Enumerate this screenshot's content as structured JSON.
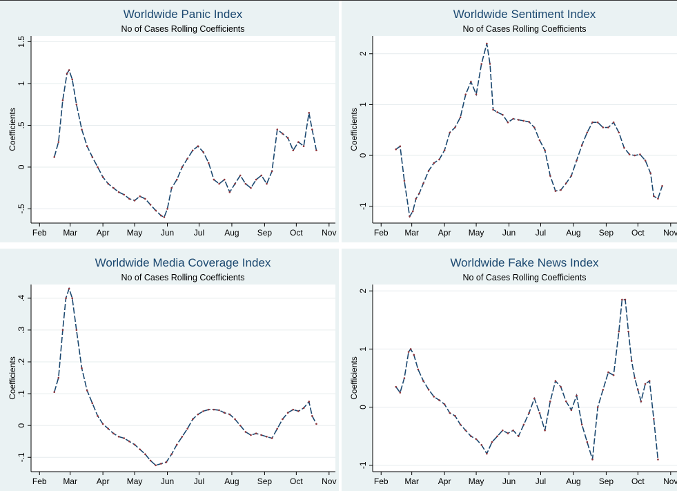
{
  "chart_data": [
    {
      "type": "line",
      "title": "Worldwide Panic Index",
      "subtitle": "No of Cases Rolling Coefficients",
      "y_label": "Coefficients",
      "x": [
        14,
        18,
        22,
        26,
        28,
        31,
        35,
        40,
        45,
        50,
        55,
        60,
        65,
        70,
        75,
        80,
        85,
        90,
        95,
        100,
        105,
        110,
        115,
        118,
        121,
        125,
        130,
        135,
        140,
        145,
        150,
        155,
        160,
        165,
        170,
        175,
        180,
        185,
        190,
        195,
        200,
        205,
        210,
        215,
        220,
        225,
        230,
        235,
        240,
        245,
        250,
        255,
        258,
        262
      ],
      "values": [
        0.12,
        0.3,
        0.8,
        1.12,
        1.16,
        1.05,
        0.75,
        0.45,
        0.25,
        0.12,
        0.0,
        -0.12,
        -0.2,
        -0.25,
        -0.3,
        -0.33,
        -0.38,
        -0.4,
        -0.35,
        -0.38,
        -0.45,
        -0.52,
        -0.58,
        -0.6,
        -0.5,
        -0.25,
        -0.15,
        0.0,
        0.1,
        0.2,
        0.25,
        0.18,
        0.05,
        -0.15,
        -0.2,
        -0.15,
        -0.3,
        -0.2,
        -0.1,
        -0.2,
        -0.25,
        -0.15,
        -0.1,
        -0.2,
        -0.05,
        0.45,
        0.4,
        0.35,
        0.2,
        0.3,
        0.25,
        0.65,
        0.45,
        0.2
      ],
      "color": "#1a476f",
      "marker_color": "#90353b",
      "xlim": [
        -8,
        280
      ],
      "xticks": [
        {
          "value": 0,
          "label": "Feb"
        },
        {
          "value": 29,
          "label": "Mar"
        },
        {
          "value": 60,
          "label": "Apr"
        },
        {
          "value": 90,
          "label": "May"
        },
        {
          "value": 121,
          "label": "Jun"
        },
        {
          "value": 151,
          "label": "Jul"
        },
        {
          "value": 182,
          "label": "Aug"
        },
        {
          "value": 213,
          "label": "Sep"
        },
        {
          "value": 243,
          "label": "Oct"
        },
        {
          "value": 274,
          "label": "Nov"
        }
      ],
      "ylim": [
        -0.67,
        1.57
      ],
      "yticks": [
        {
          "value": -0.5,
          "label": "-.5"
        },
        0,
        {
          "value": 0.5,
          "label": ".5"
        },
        1,
        1.5
      ],
      "grid": true
    },
    {
      "type": "line",
      "title": "Worldwide Sentiment Index",
      "subtitle": "No of Cases Rolling Coefficients",
      "y_label": "Coefficients",
      "x": [
        14,
        18,
        22,
        27,
        30,
        33,
        36,
        40,
        45,
        50,
        55,
        60,
        65,
        70,
        75,
        80,
        85,
        90,
        95,
        100,
        103,
        106,
        110,
        115,
        120,
        125,
        130,
        135,
        140,
        145,
        150,
        155,
        160,
        165,
        170,
        175,
        180,
        185,
        190,
        195,
        200,
        205,
        210,
        215,
        220,
        225,
        230,
        235,
        240,
        245,
        250,
        255,
        258,
        262,
        266
      ],
      "values": [
        0.12,
        0.18,
        -0.5,
        -1.2,
        -1.1,
        -0.85,
        -0.75,
        -0.55,
        -0.3,
        -0.15,
        -0.08,
        0.1,
        0.45,
        0.55,
        0.75,
        1.2,
        1.45,
        1.2,
        1.8,
        2.2,
        1.8,
        0.9,
        0.85,
        0.8,
        0.65,
        0.72,
        0.7,
        0.68,
        0.66,
        0.55,
        0.3,
        0.1,
        -0.4,
        -0.7,
        -0.68,
        -0.55,
        -0.4,
        -0.1,
        0.2,
        0.45,
        0.65,
        0.65,
        0.55,
        0.55,
        0.65,
        0.45,
        0.15,
        0.02,
        0.0,
        0.02,
        -0.1,
        -0.35,
        -0.8,
        -0.85,
        -0.6
      ],
      "color": "#1a476f",
      "marker_color": "#90353b",
      "xlim": [
        -8,
        280
      ],
      "xticks": [
        {
          "value": 0,
          "label": "Feb"
        },
        {
          "value": 29,
          "label": "Mar"
        },
        {
          "value": 60,
          "label": "Apr"
        },
        {
          "value": 90,
          "label": "May"
        },
        {
          "value": 121,
          "label": "Jun"
        },
        {
          "value": 151,
          "label": "Jul"
        },
        {
          "value": 182,
          "label": "Aug"
        },
        {
          "value": 213,
          "label": "Sep"
        },
        {
          "value": 243,
          "label": "Oct"
        },
        {
          "value": 274,
          "label": "Nov"
        }
      ],
      "ylim": [
        -1.33,
        2.35
      ],
      "yticks": [
        -1,
        0,
        1,
        2
      ],
      "grid": true
    },
    {
      "type": "line",
      "title": "Worldwide Media Coverage Index",
      "subtitle": "No of Cases Rolling Coefficients",
      "y_label": "Coefficients",
      "x": [
        14,
        18,
        22,
        25,
        28,
        31,
        35,
        40,
        45,
        50,
        55,
        60,
        65,
        70,
        75,
        80,
        85,
        90,
        95,
        100,
        105,
        110,
        115,
        120,
        125,
        130,
        135,
        140,
        145,
        150,
        155,
        160,
        165,
        170,
        175,
        180,
        185,
        190,
        195,
        200,
        205,
        210,
        215,
        220,
        225,
        230,
        235,
        240,
        245,
        250,
        255,
        258,
        262
      ],
      "values": [
        0.105,
        0.15,
        0.3,
        0.4,
        0.43,
        0.4,
        0.3,
        0.18,
        0.11,
        0.07,
        0.03,
        0.005,
        -0.01,
        -0.025,
        -0.035,
        -0.04,
        -0.05,
        -0.06,
        -0.075,
        -0.09,
        -0.11,
        -0.125,
        -0.12,
        -0.115,
        -0.09,
        -0.06,
        -0.035,
        -0.01,
        0.02,
        0.035,
        0.045,
        0.05,
        0.05,
        0.048,
        0.04,
        0.035,
        0.02,
        0.0,
        -0.02,
        -0.03,
        -0.025,
        -0.03,
        -0.035,
        -0.04,
        -0.01,
        0.02,
        0.04,
        0.05,
        0.045,
        0.055,
        0.075,
        0.03,
        0.005
      ],
      "color": "#1a476f",
      "marker_color": "#90353b",
      "xlim": [
        -8,
        280
      ],
      "xticks": [
        {
          "value": 0,
          "label": "Feb"
        },
        {
          "value": 29,
          "label": "Mar"
        },
        {
          "value": 60,
          "label": "Apr"
        },
        {
          "value": 90,
          "label": "May"
        },
        {
          "value": 121,
          "label": "Jun"
        },
        {
          "value": 151,
          "label": "Jul"
        },
        {
          "value": 182,
          "label": "Aug"
        },
        {
          "value": 213,
          "label": "Sep"
        },
        {
          "value": 243,
          "label": "Oct"
        },
        {
          "value": 274,
          "label": "Nov"
        }
      ],
      "ylim": [
        -0.145,
        0.443
      ],
      "yticks": [
        {
          "value": -0.1,
          "label": "-.1"
        },
        0,
        {
          "value": 0.1,
          "label": ".1"
        },
        {
          "value": 0.2,
          "label": ".2"
        },
        {
          "value": 0.3,
          "label": ".3"
        },
        {
          "value": 0.4,
          "label": ".4"
        }
      ],
      "grid": true
    },
    {
      "type": "line",
      "title": "Worldwide Fake News Index",
      "subtitle": "No of Cases Rolling Coefficients",
      "y_label": "Coefficients",
      "x": [
        14,
        18,
        22,
        26,
        28,
        31,
        35,
        40,
        45,
        50,
        55,
        60,
        65,
        70,
        75,
        80,
        85,
        90,
        95,
        100,
        105,
        110,
        115,
        120,
        125,
        130,
        135,
        140,
        145,
        150,
        155,
        160,
        165,
        170,
        175,
        180,
        185,
        190,
        195,
        200,
        205,
        210,
        215,
        220,
        225,
        228,
        231,
        234,
        237,
        240,
        243,
        246,
        250,
        254,
        258,
        262
      ],
      "values": [
        0.35,
        0.25,
        0.5,
        0.95,
        1.0,
        0.9,
        0.65,
        0.45,
        0.3,
        0.18,
        0.12,
        0.05,
        -0.1,
        -0.15,
        -0.3,
        -0.4,
        -0.5,
        -0.55,
        -0.65,
        -0.8,
        -0.6,
        -0.5,
        -0.4,
        -0.45,
        -0.4,
        -0.5,
        -0.3,
        -0.1,
        0.15,
        -0.1,
        -0.4,
        0.1,
        0.45,
        0.35,
        0.1,
        -0.05,
        0.2,
        -0.3,
        -0.6,
        -0.9,
        0.0,
        0.3,
        0.6,
        0.55,
        1.3,
        1.85,
        1.85,
        1.3,
        0.8,
        0.5,
        0.3,
        0.1,
        0.4,
        0.45,
        -0.2,
        -0.9
      ],
      "color": "#1a476f",
      "marker_color": "#90353b",
      "xlim": [
        -8,
        280
      ],
      "xticks": [
        {
          "value": 0,
          "label": "Feb"
        },
        {
          "value": 29,
          "label": "Mar"
        },
        {
          "value": 60,
          "label": "Apr"
        },
        {
          "value": 90,
          "label": "May"
        },
        {
          "value": 121,
          "label": "Jun"
        },
        {
          "value": 151,
          "label": "Jul"
        },
        {
          "value": 182,
          "label": "Aug"
        },
        {
          "value": 213,
          "label": "Sep"
        },
        {
          "value": 243,
          "label": "Oct"
        },
        {
          "value": 274,
          "label": "Nov"
        }
      ],
      "ylim": [
        -1.11,
        2.11
      ],
      "yticks": [
        -1,
        0,
        1,
        2
      ],
      "grid": true
    }
  ]
}
